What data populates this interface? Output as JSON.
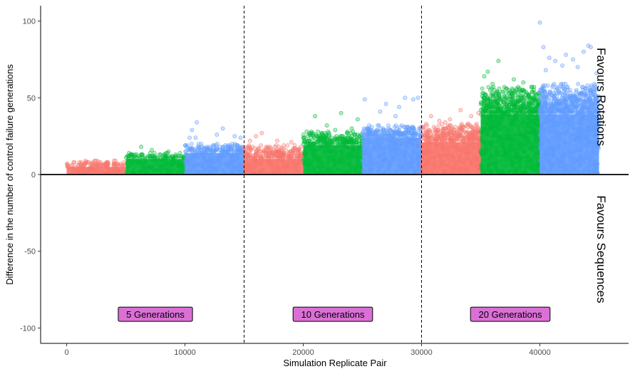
{
  "chart_data": {
    "type": "scatter",
    "title": "",
    "xlabel": "Simulation Replicate Pair",
    "ylabel": "Difference in the number of control failure generations",
    "xlim": [
      -2200,
      47500
    ],
    "ylim": [
      -110,
      110
    ],
    "x_ticks": [
      0,
      10000,
      20000,
      30000,
      40000
    ],
    "x_tick_labels": [
      "0",
      "10000",
      "20000",
      "30000",
      "40000"
    ],
    "y_ticks": [
      -100,
      -50,
      0,
      50,
      100
    ],
    "y_tick_labels": [
      "-100",
      "-50",
      "0",
      "50",
      "100"
    ],
    "grid": false,
    "hline": 0,
    "vlines": [
      15000,
      30000
    ],
    "colors": {
      "red": "#F8766D",
      "green": "#00BA38",
      "blue": "#619CFF",
      "label_fill": "#DA70D6"
    },
    "side_labels": {
      "upper": "Favours Rotations",
      "lower": "Favours Sequences"
    },
    "generation_labels": [
      {
        "text": "5 Generations",
        "x": 7500,
        "y": -91
      },
      {
        "text": "10 Generations",
        "x": 22500,
        "y": -91
      },
      {
        "text": "20 Generations",
        "x": 37500,
        "y": -91
      }
    ],
    "blocks": [
      {
        "x0": 0,
        "x1": 5000,
        "color": "red",
        "dense_max": 5,
        "sparse_max": 9,
        "outliers": []
      },
      {
        "x0": 5000,
        "x1": 10000,
        "color": "green",
        "dense_max": 10,
        "sparse_max": 14,
        "outliers": [
          [
            6300,
            18
          ],
          [
            7200,
            16
          ],
          [
            8600,
            15
          ]
        ]
      },
      {
        "x0": 10000,
        "x1": 15000,
        "color": "blue",
        "dense_max": 14,
        "sparse_max": 20,
        "outliers": [
          [
            10400,
            24
          ],
          [
            10900,
            24
          ],
          [
            10600,
            29
          ],
          [
            11000,
            34
          ],
          [
            12700,
            26
          ],
          [
            13200,
            30
          ],
          [
            14200,
            25
          ],
          [
            14700,
            24
          ]
        ]
      },
      {
        "x0": 15000,
        "x1": 20000,
        "color": "red",
        "dense_max": 10,
        "sparse_max": 19,
        "outliers": [
          [
            15500,
            22
          ],
          [
            16500,
            27
          ],
          [
            16000,
            25
          ],
          [
            17800,
            22
          ],
          [
            19000,
            21
          ]
        ]
      },
      {
        "x0": 20000,
        "x1": 25000,
        "color": "green",
        "dense_max": 19,
        "sparse_max": 28,
        "outliers": [
          [
            21000,
            38
          ],
          [
            22000,
            32
          ],
          [
            23200,
            40
          ],
          [
            24100,
            30
          ],
          [
            24600,
            36
          ],
          [
            22700,
            29
          ]
        ]
      },
      {
        "x0": 25000,
        "x1": 30000,
        "color": "blue",
        "dense_max": 24,
        "sparse_max": 32,
        "outliers": [
          [
            25200,
            49
          ],
          [
            27000,
            46
          ],
          [
            27800,
            38
          ],
          [
            28600,
            50
          ],
          [
            29300,
            49
          ],
          [
            29700,
            50
          ],
          [
            26500,
            41
          ],
          [
            28100,
            44
          ]
        ]
      },
      {
        "x0": 30000,
        "x1": 35000,
        "color": "red",
        "dense_max": 21,
        "sparse_max": 33,
        "outliers": [
          [
            30800,
            38
          ],
          [
            31500,
            35
          ],
          [
            32400,
            36
          ],
          [
            33300,
            42
          ],
          [
            34200,
            38
          ],
          [
            34800,
            40
          ],
          [
            32000,
            34
          ]
        ]
      },
      {
        "x0": 35000,
        "x1": 40000,
        "color": "green",
        "dense_max": 39,
        "sparse_max": 57,
        "outliers": [
          [
            35300,
            64
          ],
          [
            35600,
            67
          ],
          [
            36000,
            59
          ],
          [
            36500,
            74
          ],
          [
            37800,
            62
          ],
          [
            38600,
            60
          ],
          [
            39500,
            57
          ]
        ]
      },
      {
        "x0": 40000,
        "x1": 45000,
        "color": "blue",
        "dense_max": 39,
        "sparse_max": 59,
        "outliers": [
          [
            40000,
            99
          ],
          [
            40300,
            83
          ],
          [
            40800,
            76
          ],
          [
            41300,
            74
          ],
          [
            42200,
            78
          ],
          [
            42800,
            75
          ],
          [
            43700,
            80
          ],
          [
            44100,
            84
          ],
          [
            44300,
            83
          ],
          [
            44800,
            66
          ],
          [
            43200,
            70
          ],
          [
            41900,
            71
          ],
          [
            40500,
            68
          ]
        ]
      }
    ]
  }
}
